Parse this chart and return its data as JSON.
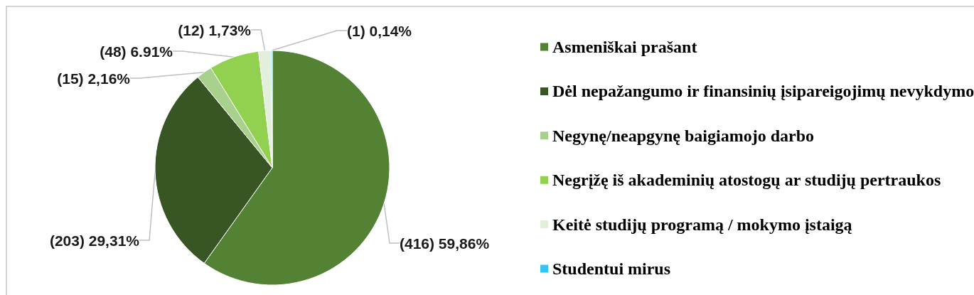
{
  "chart_data": {
    "type": "pie",
    "categories": [
      "Asmeniškai prašant",
      "Dėl nepažangumo ir finansinių įsipareigojimų nevykdymo",
      "Negynę/neapgynę baigiamojo darbo",
      "Negrįžę iš akademinių atostogų ar studijų pertraukos",
      "Keitė studijų programą / mokymo įstaigą",
      "Studentui mirus"
    ],
    "values": [
      416,
      203,
      15,
      48,
      12,
      1
    ],
    "colors": [
      "#548235",
      "#375623",
      "#a9d18e",
      "#92d050",
      "#e2efda",
      "#33c4f4"
    ],
    "value_labels": [
      "(416) 59,86%",
      "(203) 29,31%",
      "(15) 2,16%",
      "(48) 6.91%",
      "(12) 1,73%",
      "(1) 0,14%"
    ],
    "legend": "right"
  }
}
